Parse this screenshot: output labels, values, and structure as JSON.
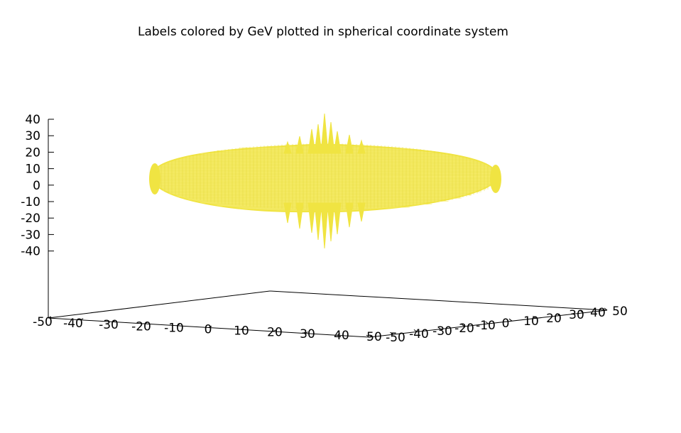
{
  "chart_data": {
    "type": "surface3d",
    "title": "Labels colored by GeV plotted in spherical coordinate system",
    "xlabel": "",
    "ylabel": "",
    "zlabel": "",
    "x_ticks": [
      "-50",
      "-40",
      "-30",
      "-20",
      "-10",
      "0",
      "10",
      "20",
      "30",
      "40",
      "50"
    ],
    "y_ticks": [
      "-50",
      "-40",
      "-30",
      "-20",
      "-10",
      "0",
      "10",
      "20",
      "30",
      "40",
      "50"
    ],
    "z_ticks": [
      "40",
      "30",
      "20",
      "10",
      "0",
      "-10",
      "-20",
      "-30",
      "-40"
    ],
    "xlim": [
      -50,
      50
    ],
    "ylim": [
      -50,
      50
    ],
    "zlim": [
      -40,
      40
    ],
    "surface": {
      "description_color": "#f0e442",
      "shape": "flattened spheroid with spikes along vertical axis",
      "equatorial_radius": 50,
      "polar_spike_max": 40
    },
    "grid": false,
    "legend": "none"
  }
}
